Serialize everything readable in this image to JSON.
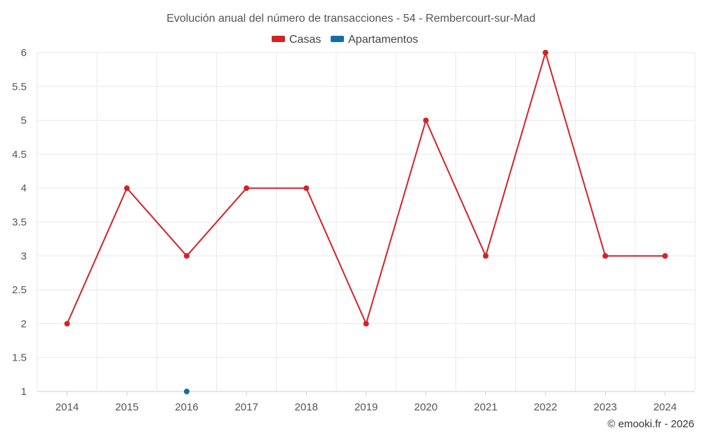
{
  "chart_data": {
    "type": "line",
    "title": "Evolución anual del número de transacciones - 54 - Rembercourt-sur-Mad",
    "categories": [
      "2014",
      "2015",
      "2016",
      "2017",
      "2018",
      "2019",
      "2020",
      "2021",
      "2022",
      "2023",
      "2024"
    ],
    "series": [
      {
        "name": "Casas",
        "color": "#d32228",
        "values": [
          2,
          4,
          3,
          4,
          4,
          2,
          5,
          3,
          6,
          3,
          3
        ]
      },
      {
        "name": "Apartamentos",
        "color": "#136ea8",
        "values": [
          null,
          null,
          1,
          null,
          null,
          null,
          null,
          null,
          null,
          null,
          null
        ]
      }
    ],
    "ylim": [
      1,
      6
    ],
    "yticks": [
      1,
      1.5,
      2,
      2.5,
      3,
      3.5,
      4,
      4.5,
      5,
      5.5,
      6
    ],
    "xlabel": "",
    "ylabel": "",
    "grid": true,
    "legend_position": "top-center"
  },
  "credit": "© emooki.fr - 2026"
}
